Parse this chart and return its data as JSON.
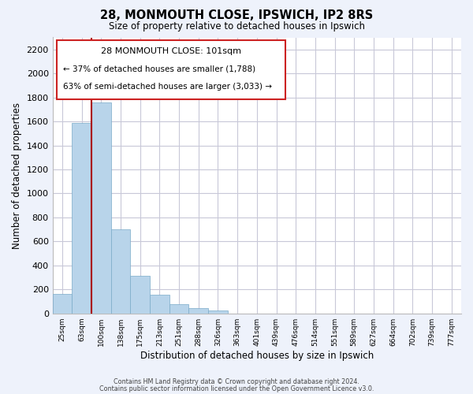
{
  "title": "28, MONMOUTH CLOSE, IPSWICH, IP2 8RS",
  "subtitle": "Size of property relative to detached houses in Ipswich",
  "xlabel": "Distribution of detached houses by size in Ipswich",
  "ylabel": "Number of detached properties",
  "categories": [
    "25sqm",
    "63sqm",
    "100sqm",
    "138sqm",
    "175sqm",
    "213sqm",
    "251sqm",
    "288sqm",
    "326sqm",
    "363sqm",
    "401sqm",
    "439sqm",
    "476sqm",
    "514sqm",
    "551sqm",
    "589sqm",
    "627sqm",
    "664sqm",
    "702sqm",
    "739sqm",
    "777sqm"
  ],
  "values": [
    160,
    1590,
    1755,
    700,
    315,
    155,
    80,
    45,
    25,
    0,
    0,
    0,
    0,
    0,
    0,
    0,
    0,
    0,
    0,
    0,
    0
  ],
  "bar_color": "#b8d4ea",
  "bar_edge_color": "#7aaac8",
  "highlight_line_color": "#aa0000",
  "ylim": [
    0,
    2300
  ],
  "yticks": [
    0,
    200,
    400,
    600,
    800,
    1000,
    1200,
    1400,
    1600,
    1800,
    2000,
    2200
  ],
  "annotation_title": "28 MONMOUTH CLOSE: 101sqm",
  "annotation_line1": "← 37% of detached houses are smaller (1,788)",
  "annotation_line2": "63% of semi-detached houses are larger (3,033) →",
  "footer_line1": "Contains HM Land Registry data © Crown copyright and database right 2024.",
  "footer_line2": "Contains public sector information licensed under the Open Government Licence v3.0.",
  "bg_color": "#eef2fb",
  "plot_bg_color": "#ffffff",
  "grid_color": "#c8c8d8"
}
